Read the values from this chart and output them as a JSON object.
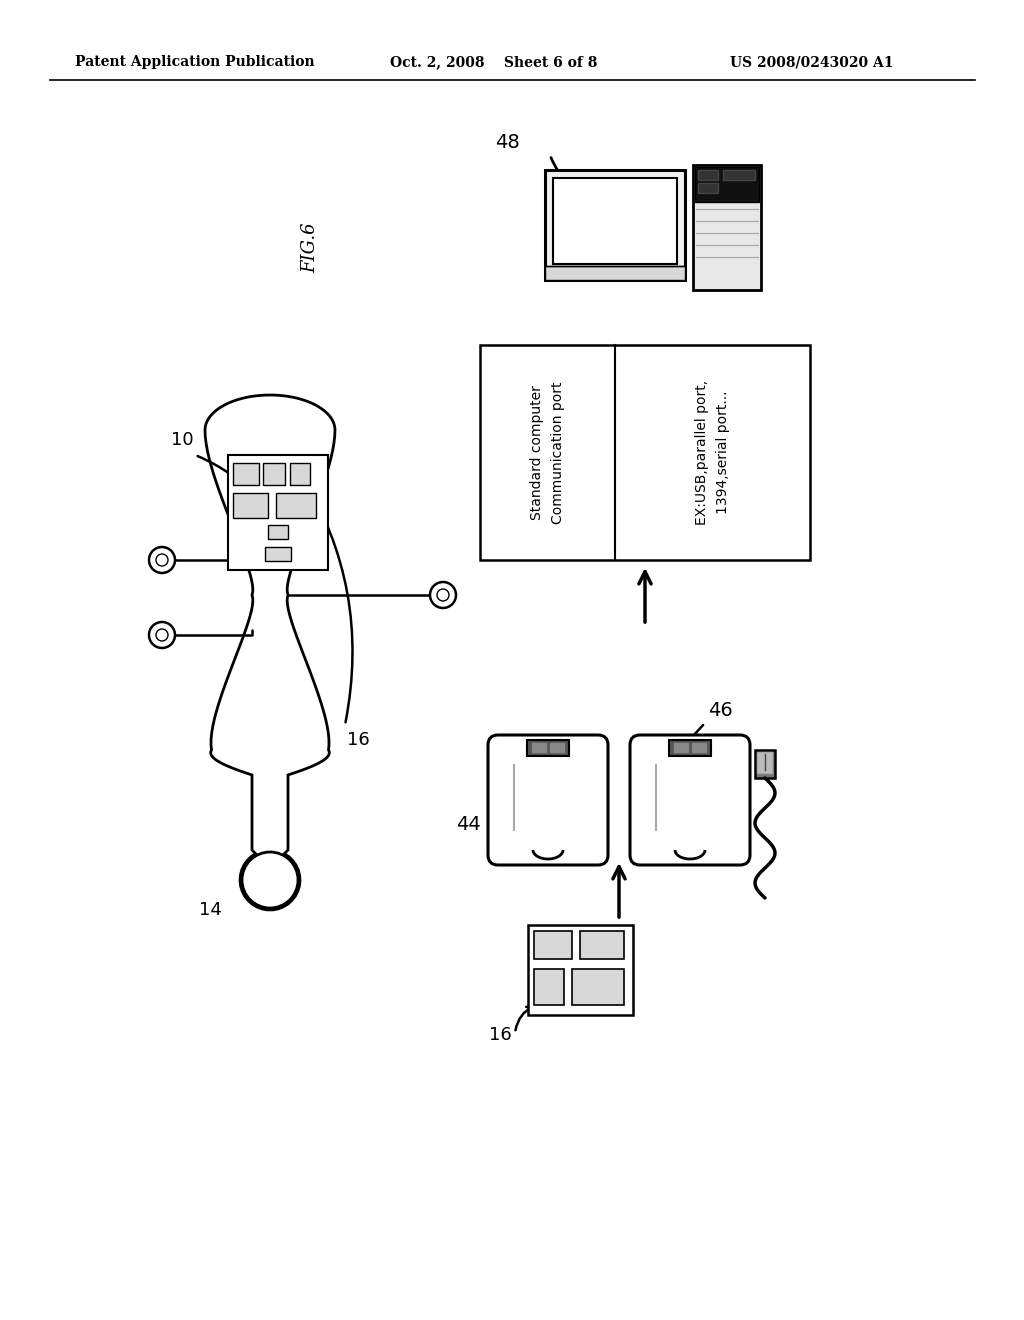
{
  "header_left": "Patent Application Publication",
  "header_mid": "Oct. 2, 2008    Sheet 6 of 8",
  "header_right": "US 2008/0243020 A1",
  "fig_label": "FIG.6",
  "background_color": "#ffffff",
  "label_10": "10",
  "label_14": "14",
  "label_16_left": "16",
  "label_16_right": "16",
  "label_44": "44",
  "label_46": "46",
  "label_48": "48",
  "box_text_left": "Standard computer\nCommunication port",
  "box_text_right": "EX:USB,parallel port,\n1394,serial port..."
}
